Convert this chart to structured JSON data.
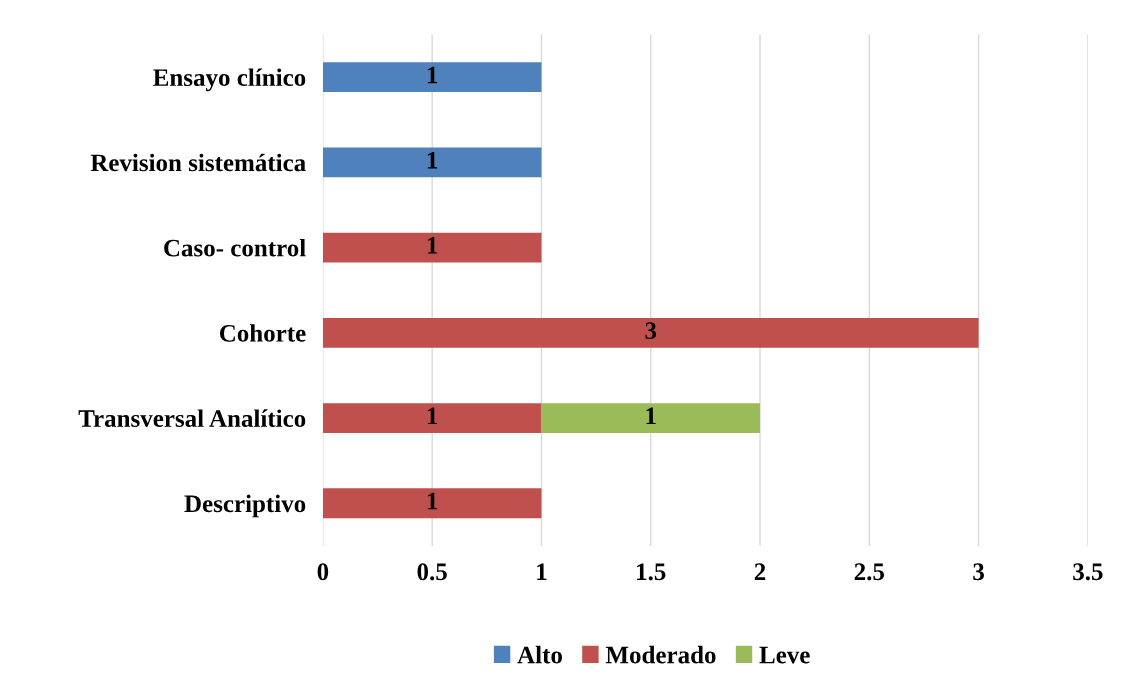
{
  "chart_data": {
    "type": "bar",
    "orientation": "horizontal",
    "stacked": true,
    "categories": [
      "Ensayo clínico",
      "Revision sistemática",
      "Caso- control",
      "Cohorte",
      "Transversal Analítico",
      "Descriptivo"
    ],
    "series": [
      {
        "name": "Alto",
        "color": "#4f81bd",
        "values": [
          1,
          1,
          null,
          null,
          null,
          null
        ]
      },
      {
        "name": "Moderado",
        "color": "#c0504d",
        "values": [
          null,
          null,
          1,
          3,
          1,
          1
        ]
      },
      {
        "name": "Leve",
        "color": "#9bbb59",
        "values": [
          null,
          null,
          null,
          null,
          1,
          null
        ]
      }
    ],
    "xlim": [
      0,
      3.5
    ],
    "xticks": [
      0,
      0.5,
      1,
      1.5,
      2,
      2.5,
      3,
      3.5
    ],
    "grid": "x",
    "legend": "bottom",
    "data_labels": true
  }
}
